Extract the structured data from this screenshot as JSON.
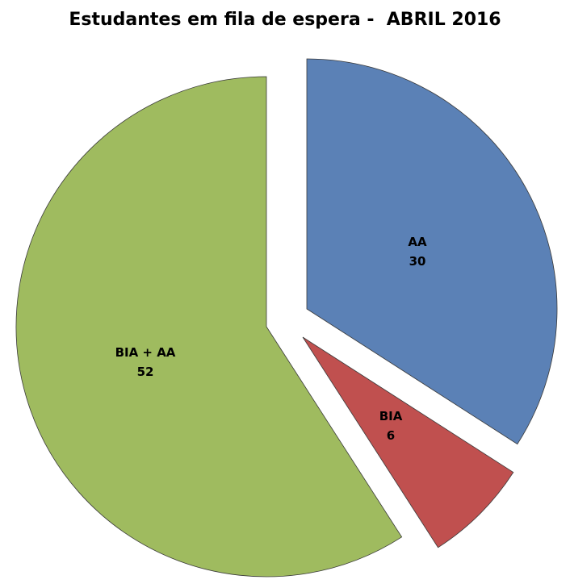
{
  "chart_data": {
    "type": "pie",
    "title": "Estudantes em fila de espera -  ABRIL 2016",
    "exploded": true,
    "start_angle": "12 o'clock, clockwise",
    "slices": [
      {
        "label": "AA",
        "value": 30,
        "color": "#5B81B6"
      },
      {
        "label": "BIA",
        "value": 6,
        "color": "#C0504F"
      },
      {
        "label": "BIA + AA",
        "value": 52,
        "color": "#9FBB5F"
      }
    ]
  }
}
